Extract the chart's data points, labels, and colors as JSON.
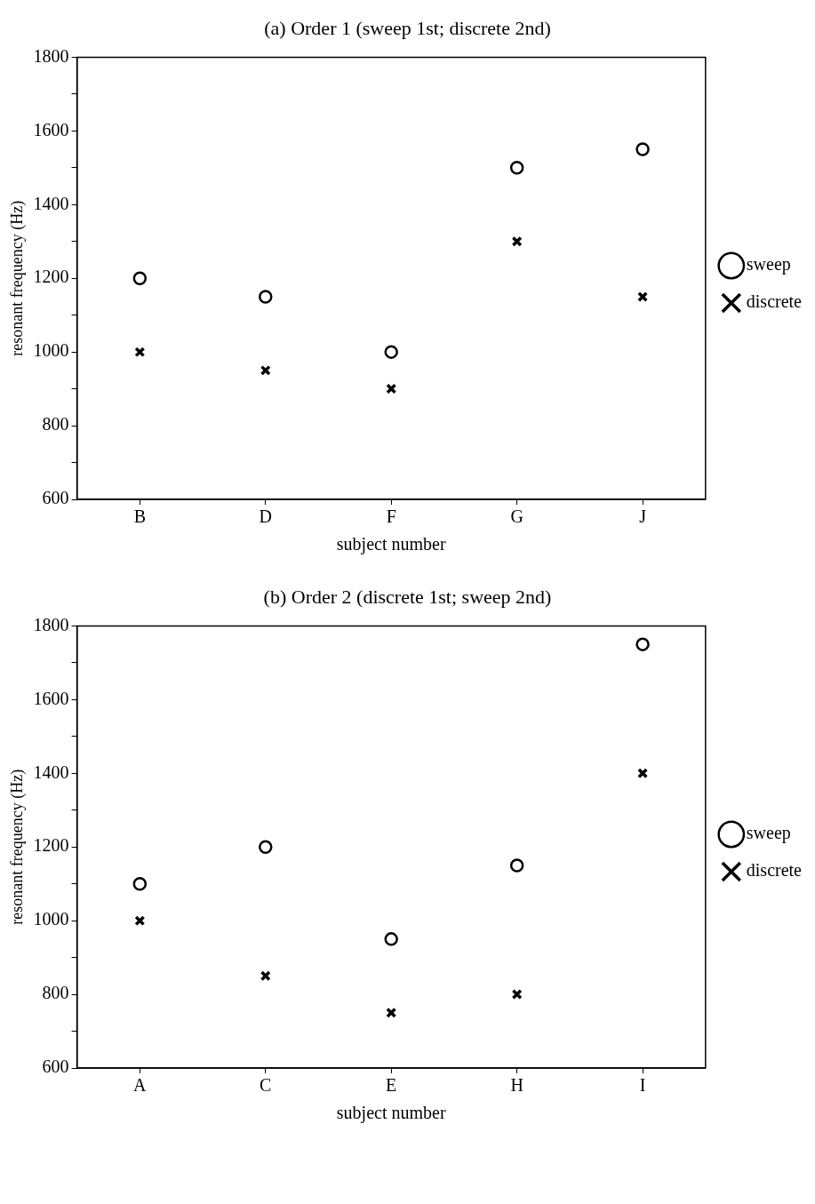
{
  "chart_data": [
    {
      "type": "scatter",
      "title": "(a) Order 1 (sweep 1st; discrete 2nd)",
      "xlabel": "subject number",
      "ylabel": "resonant frequency (Hz)",
      "categories": [
        "B",
        "D",
        "F",
        "G",
        "J"
      ],
      "series": [
        {
          "name": "sweep",
          "color": "#000000",
          "marker": "circle",
          "values": [
            1200,
            1150,
            1000,
            1500,
            1550
          ]
        },
        {
          "name": "discrete",
          "color": "#000000",
          "marker": "cross",
          "values": [
            1000,
            950,
            900,
            1300,
            1150
          ]
        }
      ],
      "ylim": [
        600,
        1800
      ],
      "yticks": [
        600,
        {
          "value": 700,
          "label": null
        },
        800,
        {
          "value": 900,
          "label": null
        },
        1000,
        {
          "value": 1100,
          "label": null
        },
        1200,
        {
          "value": 1300,
          "label": null
        },
        1400,
        {
          "value": 1500,
          "label": null
        },
        1600,
        {
          "value": 1700,
          "label": null
        },
        1800
      ],
      "grid": false,
      "legend": "right"
    },
    {
      "type": "scatter",
      "title": "(b) Order 2 (discrete 1st; sweep 2nd)",
      "xlabel": "subject number",
      "ylabel": "resonant frequency (Hz)",
      "categories": [
        "A",
        "C",
        "E",
        "H",
        "I"
      ],
      "series": [
        {
          "name": "sweep",
          "color": "#000000",
          "marker": "circle",
          "values": [
            1100,
            1200,
            950,
            1150,
            1750
          ]
        },
        {
          "name": "discrete",
          "color": "#000000",
          "marker": "cross",
          "values": [
            1000,
            850,
            750,
            800,
            1400
          ]
        }
      ],
      "ylim": [
        600,
        1800
      ],
      "yticks": [
        600,
        {
          "value": 700,
          "label": null
        },
        800,
        {
          "value": 900,
          "label": null
        },
        1000,
        {
          "value": 1100,
          "label": null
        },
        1200,
        {
          "value": 1300,
          "label": null
        },
        1400,
        {
          "value": 1500,
          "label": null
        },
        1600,
        {
          "value": 1700,
          "label": null
        },
        1800
      ],
      "grid": false,
      "legend": "right"
    }
  ]
}
